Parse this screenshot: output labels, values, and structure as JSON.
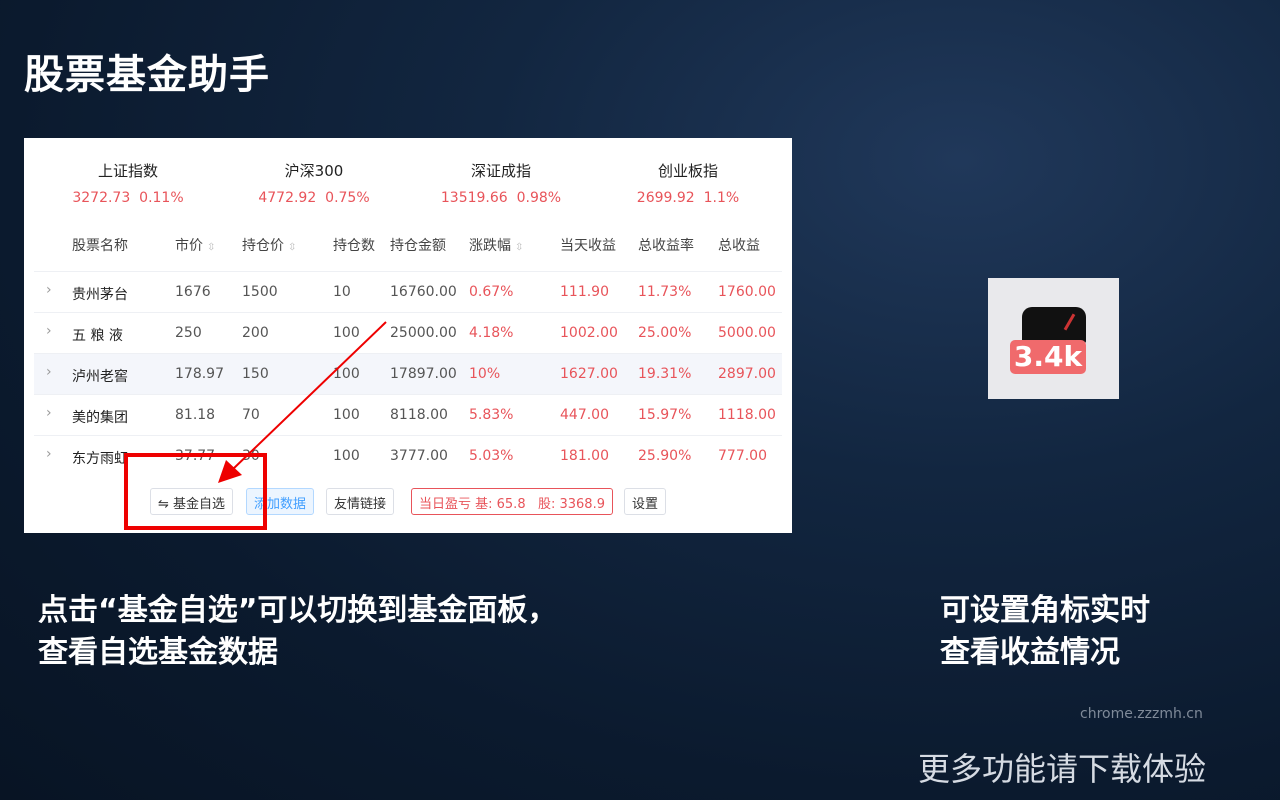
{
  "title": "股票基金助手",
  "indices": [
    {
      "name": "上证指数",
      "value": "3272.73",
      "change": "0.11%"
    },
    {
      "name": "沪深300",
      "value": "4772.92",
      "change": "0.75%"
    },
    {
      "name": "深证成指",
      "value": "13519.66",
      "change": "0.98%"
    },
    {
      "name": "创业板指",
      "value": "2699.92",
      "change": "1.1%"
    }
  ],
  "columns": [
    "股票名称",
    "市价",
    "持仓价",
    "持仓数",
    "持仓金额",
    "涨跌幅",
    "当天收益",
    "总收益率",
    "总收益"
  ],
  "rows": [
    [
      "贵州茅台",
      "1676",
      "1500",
      "10",
      "16760.00",
      "0.67%",
      "111.90",
      "11.73%",
      "1760.00"
    ],
    [
      "五 粮 液",
      "250",
      "200",
      "100",
      "25000.00",
      "4.18%",
      "1002.00",
      "25.00%",
      "5000.00"
    ],
    [
      "泸州老窖",
      "178.97",
      "150",
      "100",
      "17897.00",
      "10%",
      "1627.00",
      "19.31%",
      "2897.00"
    ],
    [
      "美的集团",
      "81.18",
      "70",
      "100",
      "8118.00",
      "5.83%",
      "447.00",
      "15.97%",
      "1118.00"
    ],
    [
      "东方雨虹",
      "37.77",
      "30",
      "100",
      "3777.00",
      "5.03%",
      "181.00",
      "25.90%",
      "777.00"
    ]
  ],
  "buttons": {
    "fund": "⇋ 基金自选",
    "add": "添加数据",
    "links": "友情链接",
    "pnl": "当日盈亏 基: 65.8   股: 3368.9",
    "settings": "设置"
  },
  "badge": "3.4k",
  "caption_left": [
    "点击“基金自选”可以切换到基金面板，",
    "查看自选基金数据"
  ],
  "caption_right": [
    "可设置角标实时",
    "查看收益情况"
  ],
  "website": "chrome.zzzmh.cn",
  "footer": "更多功能请下载体验",
  "colors": {
    "red": "#e8545a",
    "highlight": "#ff0000"
  }
}
